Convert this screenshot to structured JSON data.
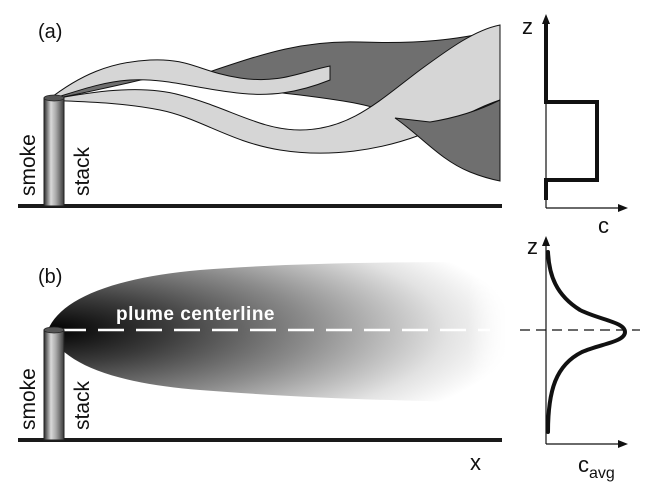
{
  "panel_a": {
    "label": "(a)",
    "smoke_label": "smoke",
    "stack_label": "stack",
    "profile": {
      "z_label": "z",
      "c_label": "c"
    }
  },
  "panel_b": {
    "label": "(b)",
    "smoke_label": "smoke",
    "stack_label": "stack",
    "centerline_label": "plume centerline",
    "x_label": "x",
    "profile": {
      "z_label": "z",
      "c_main": "c",
      "c_sub": "avg"
    }
  },
  "colors": {
    "ink": "#111111",
    "dark_ribbon": "#6f6f6f",
    "light_ribbon": "#d6d6d6",
    "ground": "#1a1a1a"
  }
}
